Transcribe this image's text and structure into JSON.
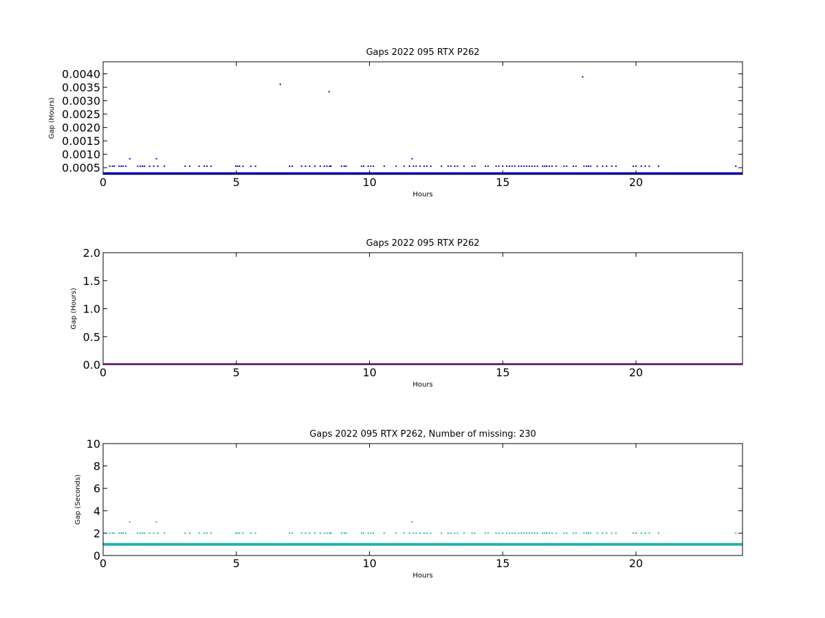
{
  "chart_data": [
    {
      "type": "scatter",
      "title": "Gaps 2022 095 RTX  P262",
      "xlabel": "Hours",
      "ylabel": "Gap (Hours)",
      "xlim": [
        0,
        24
      ],
      "ylim": [
        0.00025,
        0.00445
      ],
      "xticks": [
        0,
        5,
        10,
        15,
        20
      ],
      "yticks": [
        0.0005,
        0.001,
        0.0015,
        0.002,
        0.0025,
        0.003,
        0.0035,
        0.004
      ],
      "ytick_labels": [
        "0.0005",
        "0.0010",
        "0.0015",
        "0.0020",
        "0.0025",
        "0.0030",
        "0.0035",
        "0.0040"
      ],
      "grid": false,
      "color": "#0000cc",
      "baseline": {
        "value": 0.000278,
        "x": [
          0,
          24
        ]
      },
      "series": [
        {
          "values": [
            [
              0.25,
              0.000556
            ],
            [
              0.35,
              0.000556
            ],
            [
              0.42,
              0.000556
            ],
            [
              0.6,
              0.000556
            ],
            [
              0.68,
              0.000556
            ],
            [
              0.75,
              0.000556
            ],
            [
              0.85,
              0.000556
            ],
            [
              1.3,
              0.000556
            ],
            [
              1.4,
              0.000556
            ],
            [
              1.48,
              0.000556
            ],
            [
              1.55,
              0.000556
            ],
            [
              1.75,
              0.000556
            ],
            [
              1.9,
              0.000556
            ],
            [
              2.05,
              0.000556
            ],
            [
              2.3,
              0.000556
            ],
            [
              3.08,
              0.000556
            ],
            [
              3.25,
              0.000556
            ],
            [
              3.6,
              0.000556
            ],
            [
              3.8,
              0.000556
            ],
            [
              3.9,
              0.000556
            ],
            [
              4.05,
              0.000556
            ],
            [
              4.98,
              0.000556
            ],
            [
              5.05,
              0.000556
            ],
            [
              5.12,
              0.000556
            ],
            [
              5.25,
              0.000556
            ],
            [
              5.55,
              0.000556
            ],
            [
              5.72,
              0.000556
            ],
            [
              7.0,
              0.000556
            ],
            [
              7.1,
              0.000556
            ],
            [
              7.45,
              0.000556
            ],
            [
              7.6,
              0.000556
            ],
            [
              7.75,
              0.000556
            ],
            [
              7.95,
              0.000556
            ],
            [
              8.15,
              0.000556
            ],
            [
              8.3,
              0.000556
            ],
            [
              8.4,
              0.000556
            ],
            [
              8.5,
              0.000556
            ],
            [
              8.55,
              0.000556
            ],
            [
              8.95,
              0.000556
            ],
            [
              9.05,
              0.000556
            ],
            [
              9.12,
              0.000556
            ],
            [
              9.7,
              0.000556
            ],
            [
              9.78,
              0.000556
            ],
            [
              9.95,
              0.000556
            ],
            [
              10.05,
              0.000556
            ],
            [
              10.15,
              0.000556
            ],
            [
              10.55,
              0.000556
            ],
            [
              11.0,
              0.000556
            ],
            [
              11.3,
              0.000556
            ],
            [
              11.5,
              0.000556
            ],
            [
              11.65,
              0.000556
            ],
            [
              11.75,
              0.000556
            ],
            [
              11.9,
              0.000556
            ],
            [
              12.05,
              0.000556
            ],
            [
              12.15,
              0.000556
            ],
            [
              12.3,
              0.000556
            ],
            [
              12.7,
              0.000556
            ],
            [
              12.95,
              0.000556
            ],
            [
              13.05,
              0.000556
            ],
            [
              13.2,
              0.000556
            ],
            [
              13.3,
              0.000556
            ],
            [
              13.55,
              0.000556
            ],
            [
              13.85,
              0.000556
            ],
            [
              13.95,
              0.000556
            ],
            [
              14.35,
              0.000556
            ],
            [
              14.45,
              0.000556
            ],
            [
              14.75,
              0.000556
            ],
            [
              14.85,
              0.000556
            ],
            [
              15.0,
              0.000556
            ],
            [
              15.15,
              0.000556
            ],
            [
              15.25,
              0.000556
            ],
            [
              15.35,
              0.000556
            ],
            [
              15.45,
              0.000556
            ],
            [
              15.6,
              0.000556
            ],
            [
              15.7,
              0.000556
            ],
            [
              15.8,
              0.000556
            ],
            [
              15.9,
              0.000556
            ],
            [
              16.0,
              0.000556
            ],
            [
              16.1,
              0.000556
            ],
            [
              16.2,
              0.000556
            ],
            [
              16.3,
              0.000556
            ],
            [
              16.5,
              0.000556
            ],
            [
              16.58,
              0.000556
            ],
            [
              16.65,
              0.000556
            ],
            [
              16.75,
              0.000556
            ],
            [
              16.85,
              0.000556
            ],
            [
              17.0,
              0.000556
            ],
            [
              17.3,
              0.000556
            ],
            [
              17.4,
              0.000556
            ],
            [
              17.65,
              0.000556
            ],
            [
              17.75,
              0.000556
            ],
            [
              18.05,
              0.000556
            ],
            [
              18.15,
              0.000556
            ],
            [
              18.22,
              0.000556
            ],
            [
              18.3,
              0.000556
            ],
            [
              18.55,
              0.000556
            ],
            [
              18.75,
              0.000556
            ],
            [
              18.9,
              0.000556
            ],
            [
              19.1,
              0.000556
            ],
            [
              19.25,
              0.000556
            ],
            [
              19.9,
              0.000556
            ],
            [
              20.0,
              0.000556
            ],
            [
              20.2,
              0.000556
            ],
            [
              20.35,
              0.000556
            ],
            [
              20.5,
              0.000556
            ],
            [
              20.85,
              0.000556
            ],
            [
              23.75,
              0.000556
            ],
            [
              1.0,
              0.000833
            ],
            [
              2.0,
              0.000833
            ],
            [
              11.6,
              0.000833
            ],
            [
              6.65,
              0.003611
            ],
            [
              8.48,
              0.003333
            ],
            [
              18.0,
              0.003889
            ]
          ]
        }
      ]
    },
    {
      "type": "scatter",
      "title": "Gaps 2022 095 RTX  P262",
      "xlabel": "Hours",
      "ylabel": "Gap (Hours)",
      "xlim": [
        0,
        24
      ],
      "ylim": [
        0,
        2
      ],
      "xticks": [
        0,
        5,
        10,
        15,
        20
      ],
      "yticks": [
        0.0,
        0.5,
        1.0,
        1.5,
        2.0
      ],
      "ytick_labels": [
        "0.0",
        "0.5",
        "1.0",
        "1.5",
        "2.0"
      ],
      "grid": false,
      "color": "#990099",
      "baseline": {
        "value": 0.0,
        "x": [
          0,
          24
        ]
      },
      "series": [
        {
          "values": []
        }
      ]
    },
    {
      "type": "scatter",
      "title": "Gaps 2022 095 RTX  P262, Number of missing: 230",
      "xlabel": "Hours",
      "ylabel": "Gap (Seconds)",
      "xlim": [
        0,
        24
      ],
      "ylim": [
        0,
        10
      ],
      "xticks": [
        0,
        5,
        10,
        15,
        20
      ],
      "yticks": [
        0,
        2,
        4,
        6,
        8,
        10
      ],
      "ytick_labels": [
        "0",
        "2",
        "4",
        "6",
        "8",
        "10"
      ],
      "grid": false,
      "color": "#20b2aa",
      "baseline": {
        "value": 1.0,
        "x": [
          0,
          24
        ]
      },
      "series": [
        {
          "values": [
            [
              0.25,
              2
            ],
            [
              0.35,
              2
            ],
            [
              0.42,
              2
            ],
            [
              0.6,
              2
            ],
            [
              0.68,
              2
            ],
            [
              0.75,
              2
            ],
            [
              0.85,
              2
            ],
            [
              1.3,
              2
            ],
            [
              1.4,
              2
            ],
            [
              1.48,
              2
            ],
            [
              1.55,
              2
            ],
            [
              1.75,
              2
            ],
            [
              1.9,
              2
            ],
            [
              2.05,
              2
            ],
            [
              2.3,
              2
            ],
            [
              3.08,
              2
            ],
            [
              3.25,
              2
            ],
            [
              3.6,
              2
            ],
            [
              3.8,
              2
            ],
            [
              3.9,
              2
            ],
            [
              4.05,
              2
            ],
            [
              4.98,
              2
            ],
            [
              5.05,
              2
            ],
            [
              5.12,
              2
            ],
            [
              5.25,
              2
            ],
            [
              5.55,
              2
            ],
            [
              5.72,
              2
            ],
            [
              7.0,
              2
            ],
            [
              7.1,
              2
            ],
            [
              7.45,
              2
            ],
            [
              7.6,
              2
            ],
            [
              7.75,
              2
            ],
            [
              7.95,
              2
            ],
            [
              8.15,
              2
            ],
            [
              8.3,
              2
            ],
            [
              8.4,
              2
            ],
            [
              8.5,
              2
            ],
            [
              8.55,
              2
            ],
            [
              8.95,
              2
            ],
            [
              9.05,
              2
            ],
            [
              9.12,
              2
            ],
            [
              9.7,
              2
            ],
            [
              9.78,
              2
            ],
            [
              9.95,
              2
            ],
            [
              10.05,
              2
            ],
            [
              10.15,
              2
            ],
            [
              10.55,
              2
            ],
            [
              11.0,
              2
            ],
            [
              11.3,
              2
            ],
            [
              11.5,
              2
            ],
            [
              11.65,
              2
            ],
            [
              11.75,
              2
            ],
            [
              11.9,
              2
            ],
            [
              12.05,
              2
            ],
            [
              12.15,
              2
            ],
            [
              12.3,
              2
            ],
            [
              12.7,
              2
            ],
            [
              12.95,
              2
            ],
            [
              13.05,
              2
            ],
            [
              13.2,
              2
            ],
            [
              13.3,
              2
            ],
            [
              13.55,
              2
            ],
            [
              13.85,
              2
            ],
            [
              13.95,
              2
            ],
            [
              14.35,
              2
            ],
            [
              14.45,
              2
            ],
            [
              14.75,
              2
            ],
            [
              14.85,
              2
            ],
            [
              15.0,
              2
            ],
            [
              15.15,
              2
            ],
            [
              15.25,
              2
            ],
            [
              15.35,
              2
            ],
            [
              15.45,
              2
            ],
            [
              15.6,
              2
            ],
            [
              15.7,
              2
            ],
            [
              15.8,
              2
            ],
            [
              15.9,
              2
            ],
            [
              16.0,
              2
            ],
            [
              16.1,
              2
            ],
            [
              16.2,
              2
            ],
            [
              16.3,
              2
            ],
            [
              16.5,
              2
            ],
            [
              16.58,
              2
            ],
            [
              16.65,
              2
            ],
            [
              16.75,
              2
            ],
            [
              16.85,
              2
            ],
            [
              17.0,
              2
            ],
            [
              17.3,
              2
            ],
            [
              17.4,
              2
            ],
            [
              17.65,
              2
            ],
            [
              17.75,
              2
            ],
            [
              18.05,
              2
            ],
            [
              18.15,
              2
            ],
            [
              18.22,
              2
            ],
            [
              18.3,
              2
            ],
            [
              18.55,
              2
            ],
            [
              18.75,
              2
            ],
            [
              18.9,
              2
            ],
            [
              19.1,
              2
            ],
            [
              19.25,
              2
            ],
            [
              19.9,
              2
            ],
            [
              20.0,
              2
            ],
            [
              20.2,
              2
            ],
            [
              20.35,
              2
            ],
            [
              20.5,
              2
            ],
            [
              20.85,
              2
            ],
            [
              23.75,
              2
            ],
            [
              1.0,
              3
            ],
            [
              2.0,
              3
            ],
            [
              11.6,
              3
            ]
          ]
        }
      ]
    }
  ]
}
